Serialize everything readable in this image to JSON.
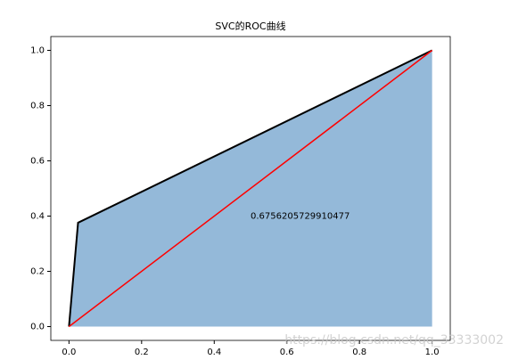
{
  "chart_data": {
    "type": "line",
    "title": "SVC的ROC曲线",
    "series": [
      {
        "color": "#000000",
        "fill": "#94b9d9",
        "x": [
          0,
          0.025,
          1
        ],
        "values": [
          0,
          0.376,
          1
        ]
      },
      {
        "color": "#ff0000",
        "x": [
          0,
          1
        ],
        "values": [
          0,
          1
        ]
      }
    ],
    "annotation": {
      "text": "0.6756205729910477",
      "x": 0.5,
      "y": 0.4
    },
    "xlim": [
      -0.05,
      1.05
    ],
    "ylim": [
      -0.05,
      1.05
    ],
    "xticks": [
      {
        "value": 0,
        "label": "0.0"
      },
      0.2,
      0.4,
      0.6,
      0.8,
      {
        "value": 1,
        "label": "1.0"
      }
    ],
    "yticks": [
      {
        "value": 0,
        "label": "0.0"
      },
      0.2,
      0.4,
      0.6,
      0.8,
      {
        "value": 1,
        "label": "1.0"
      }
    ],
    "watermark": "https://blog.csdn.net/qq_33333002"
  }
}
